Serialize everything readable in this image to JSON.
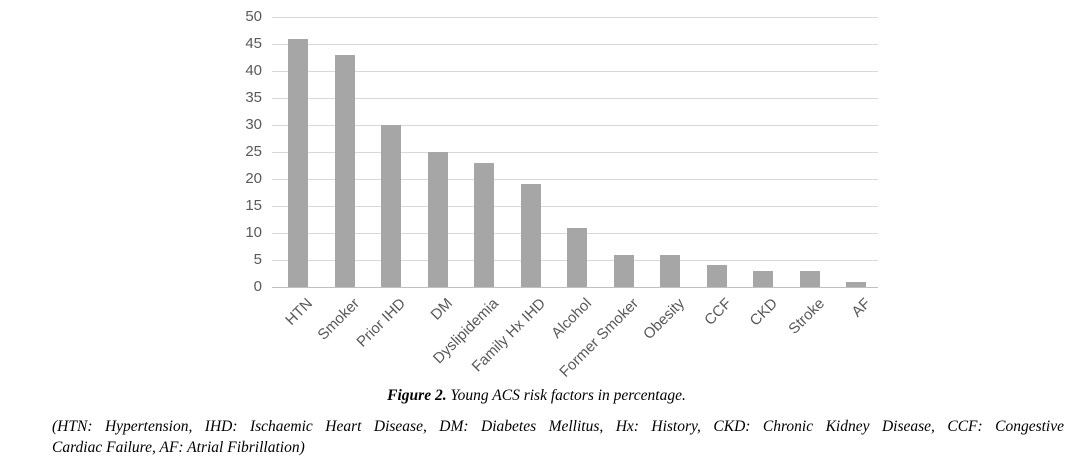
{
  "chart_data": {
    "type": "bar",
    "title": "",
    "xlabel": "",
    "ylabel": "",
    "categories": [
      "HTN",
      "Smoker",
      "Prior IHD",
      "DM",
      "Dyslipidemia",
      "Family Hx IHD",
      "Alcohol",
      "Former Smoker",
      "Obesity",
      "CCF",
      "CKD",
      "Stroke",
      "AF"
    ],
    "values": [
      46,
      43,
      30,
      25,
      23,
      19,
      11,
      6,
      6,
      4,
      3,
      3,
      1
    ],
    "ylim": [
      0,
      50
    ],
    "ytick_step": 5,
    "grid": true,
    "legend": false,
    "bar_color": "#a6a6a6",
    "gridline_color": "#d9d9d9",
    "baseline_color": "#bfbfbf",
    "axis_label_color": "#595959"
  },
  "caption": {
    "label": "Figure 2.",
    "text": " Young ACS risk factors in percentage."
  },
  "note": {
    "line1": "(HTN: Hypertension, IHD: Ischaemic Heart Disease, DM: Diabetes Mellitus, Hx: History, CKD: Chronic Kidney Disease, CCF: Congestive",
    "line2": "Cardiac Failure, AF: Atrial Fibrillation)"
  }
}
